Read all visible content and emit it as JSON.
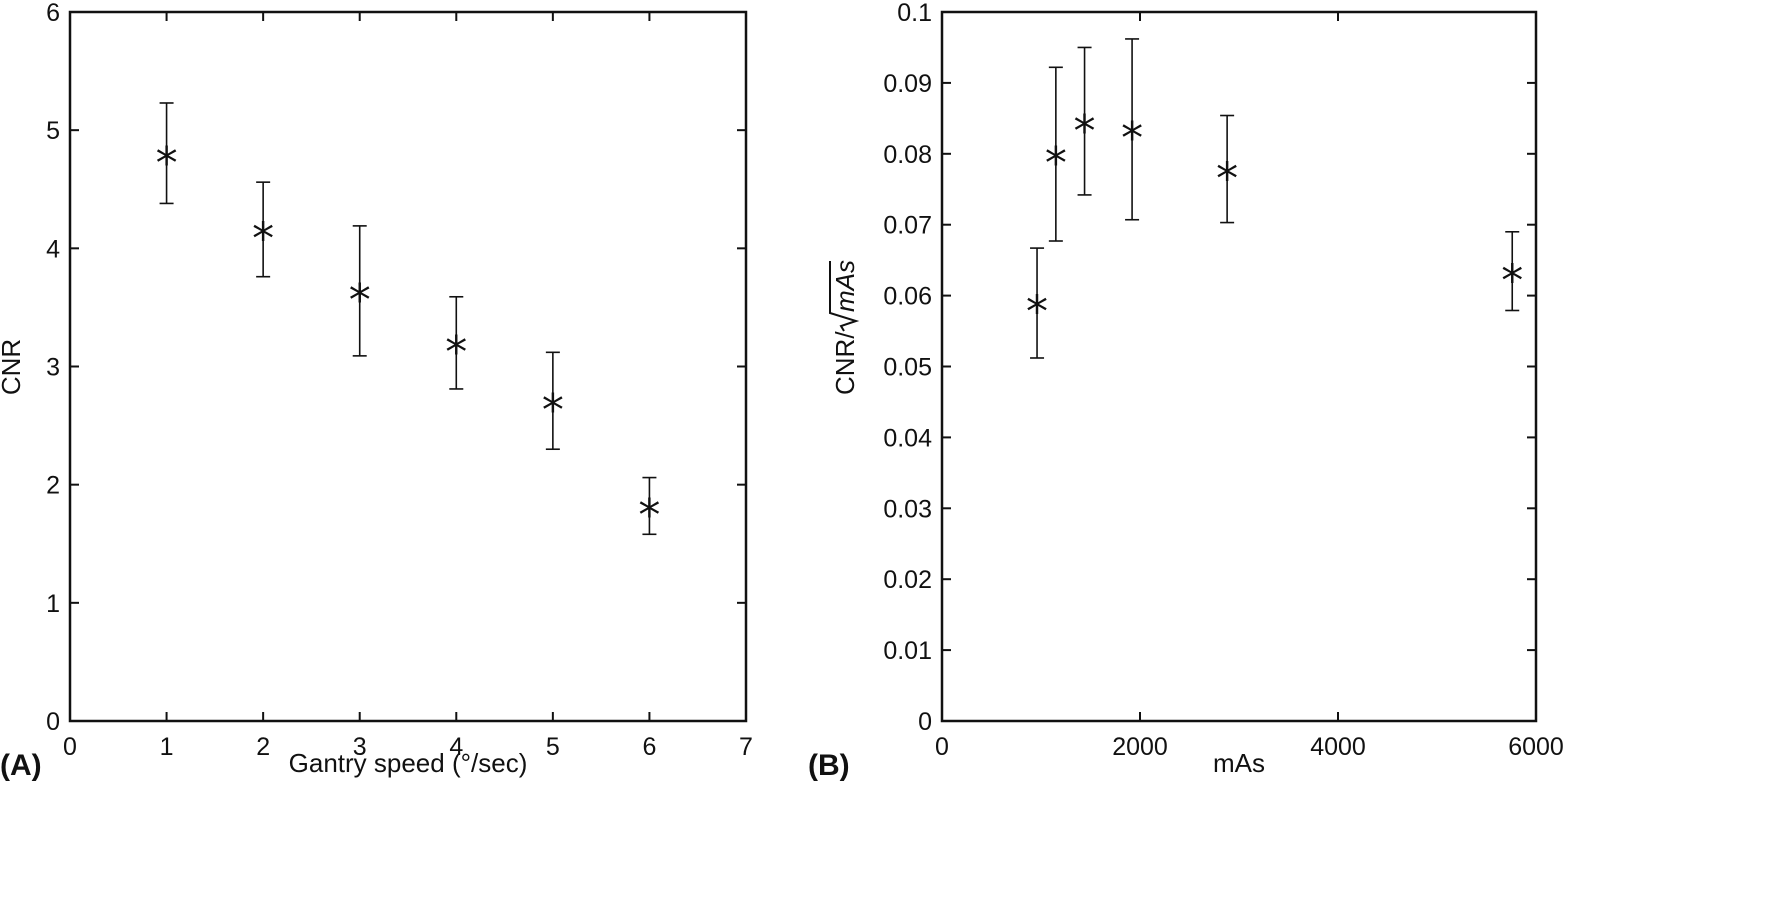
{
  "chart_data": [
    {
      "type": "scatter",
      "panel_label": "(A)",
      "xlabel": "Gantry speed (°/sec)",
      "ylabel": "CNR",
      "xlim": [
        0,
        7
      ],
      "ylim": [
        0,
        6
      ],
      "xticks": [
        0,
        1,
        2,
        3,
        4,
        5,
        6,
        7
      ],
      "yticks": [
        0,
        1,
        2,
        3,
        4,
        5,
        6
      ],
      "xtick_labels": [
        "0",
        "1",
        "2",
        "3",
        "4",
        "5",
        "6",
        "7"
      ],
      "ytick_labels": [
        "0",
        "1",
        "2",
        "3",
        "4",
        "5",
        "6"
      ],
      "grid": false,
      "marker": "*",
      "points": [
        {
          "x": 1,
          "y": 4.8,
          "err_low": 4.38,
          "err_high": 5.23
        },
        {
          "x": 2,
          "y": 4.16,
          "err_low": 3.76,
          "err_high": 4.56
        },
        {
          "x": 3,
          "y": 3.64,
          "err_low": 3.09,
          "err_high": 4.19
        },
        {
          "x": 4,
          "y": 3.2,
          "err_low": 2.81,
          "err_high": 3.59
        },
        {
          "x": 5,
          "y": 2.71,
          "err_low": 2.3,
          "err_high": 3.12
        },
        {
          "x": 6,
          "y": 1.82,
          "err_low": 1.58,
          "err_high": 2.06
        }
      ]
    },
    {
      "type": "scatter",
      "panel_label": "(B)",
      "xlabel": "mAs",
      "ylabel_prefix": "CNR/",
      "ylabel_sqrt": "mAs",
      "xlim": [
        0,
        6000
      ],
      "ylim": [
        0,
        0.1
      ],
      "xticks": [
        0,
        2000,
        4000,
        6000
      ],
      "yticks": [
        0,
        0.01,
        0.02,
        0.03,
        0.04,
        0.05,
        0.06,
        0.07,
        0.08,
        0.09,
        0.1
      ],
      "xtick_labels": [
        "0",
        "2000",
        "4000",
        "6000"
      ],
      "ytick_labels": [
        "0",
        "0.01",
        "0.02",
        "0.03",
        "0.04",
        "0.05",
        "0.06",
        "0.07",
        "0.08",
        "0.09",
        "0.1"
      ],
      "grid": false,
      "marker": "*",
      "points": [
        {
          "x": 960,
          "y": 0.059,
          "err_low": 0.0512,
          "err_high": 0.0667
        },
        {
          "x": 1150,
          "y": 0.08,
          "err_low": 0.0677,
          "err_high": 0.0922
        },
        {
          "x": 1440,
          "y": 0.0845,
          "err_low": 0.0742,
          "err_high": 0.095
        },
        {
          "x": 1920,
          "y": 0.0835,
          "err_low": 0.0707,
          "err_high": 0.0962
        },
        {
          "x": 2880,
          "y": 0.0778,
          "err_low": 0.0703,
          "err_high": 0.0854
        },
        {
          "x": 5760,
          "y": 0.0634,
          "err_low": 0.0579,
          "err_high": 0.069
        }
      ]
    }
  ]
}
